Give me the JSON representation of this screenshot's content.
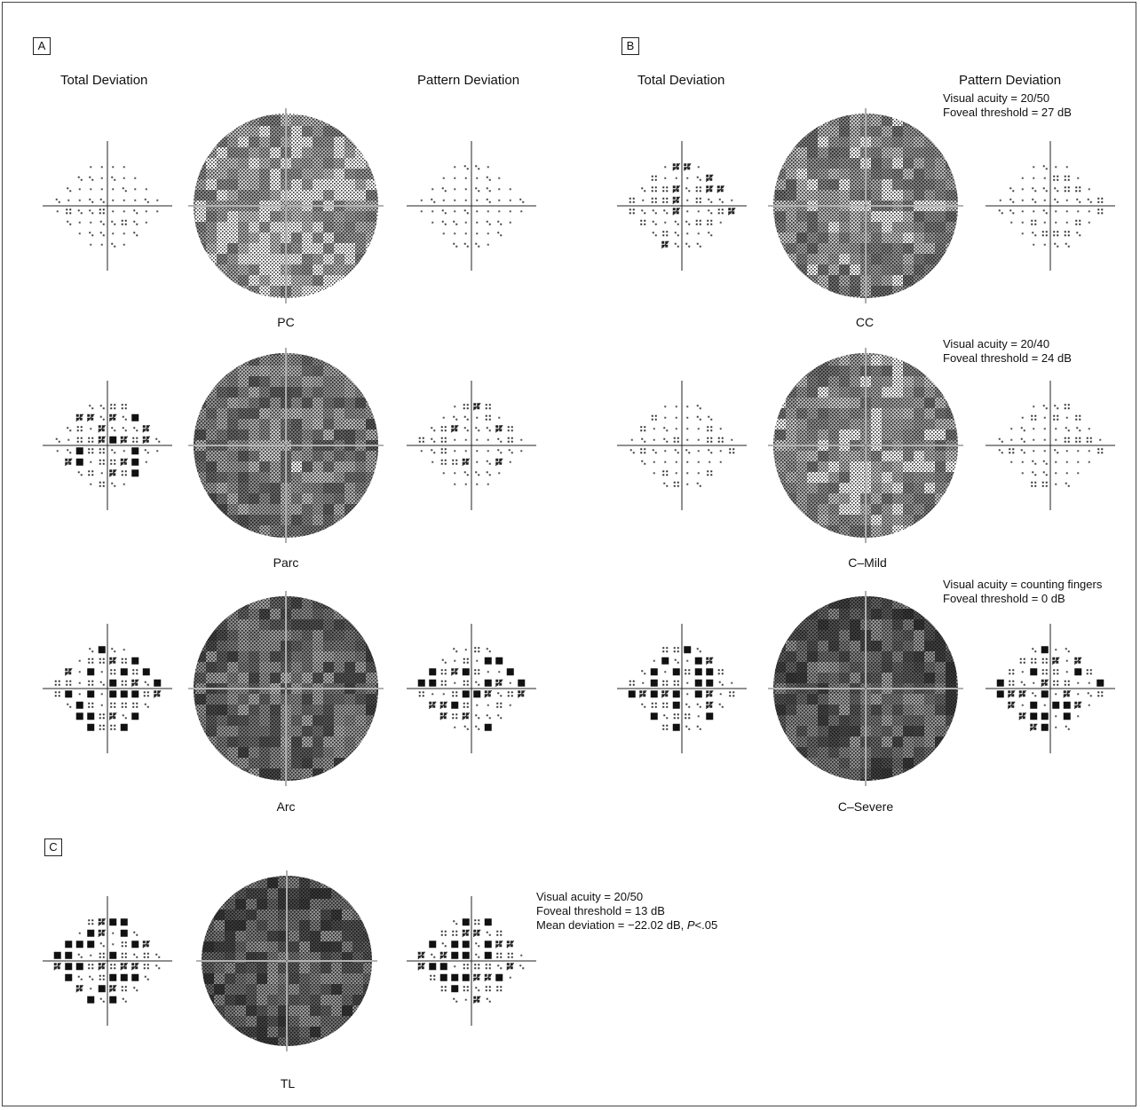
{
  "panels": {
    "A": {
      "label": "A",
      "header_total": "Total Deviation",
      "header_pattern": "Pattern Deviation",
      "rows": [
        {
          "name": "PC",
          "severity": [
            0.15,
            0.1
          ]
        },
        {
          "name": "Parc",
          "severity": [
            0.55,
            0.3
          ]
        },
        {
          "name": "Arc",
          "severity": [
            0.75,
            0.55
          ]
        }
      ]
    },
    "B": {
      "label": "B",
      "header_total": "Total Deviation",
      "header_pattern": "Pattern Deviation",
      "rows": [
        {
          "name": "CC",
          "acuity": "Visual acuity = 20/50",
          "foveal": "Foveal threshold = 27 dB",
          "severity": [
            0.35,
            0.25
          ]
        },
        {
          "name": "C–Mild",
          "acuity": "Visual acuity = 20/40",
          "foveal": "Foveal threshold = 24 dB",
          "severity": [
            0.3,
            0.25
          ]
        },
        {
          "name": "C–Severe",
          "acuity": "Visual acuity = counting fingers",
          "foveal": "Foveal threshold = 0 dB",
          "severity": [
            0.85,
            0.65
          ]
        }
      ]
    },
    "C": {
      "label": "C",
      "row": {
        "name": "TL",
        "severity": [
          0.9,
          0.75
        ]
      },
      "acuity": "Visual acuity = 20/50",
      "foveal": "Foveal threshold = 13 dB",
      "mean_deviation": "Mean deviation = −22.02 dB,",
      "p_label": "P",
      "p_value": "<.05"
    }
  }
}
